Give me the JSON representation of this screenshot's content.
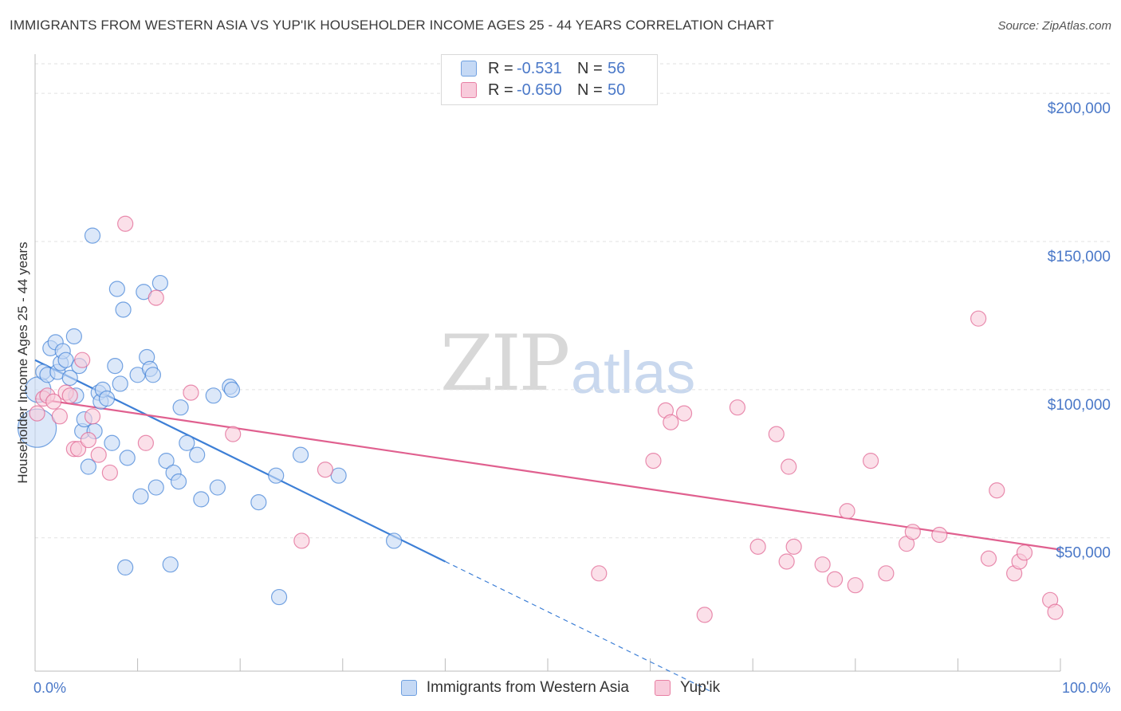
{
  "title": "IMMIGRANTS FROM WESTERN ASIA VS YUP'IK HOUSEHOLDER INCOME AGES 25 - 44 YEARS CORRELATION CHART",
  "source": "Source: ZipAtlas.com",
  "watermark": {
    "zip": "ZIP",
    "atlas": "atlas"
  },
  "legend": {
    "rows": [
      {
        "r_label": "R =",
        "r_value": "-0.531",
        "n_label": "N =",
        "n_value": "56",
        "color": "#6fa0e0",
        "fill": "#c5d9f5"
      },
      {
        "r_label": "R =",
        "r_value": "-0.650",
        "n_label": "N =",
        "n_value": "50",
        "color": "#e87fa3",
        "fill": "#f8cbdb"
      }
    ]
  },
  "bottom_legend": [
    {
      "label": "Immigrants from Western Asia",
      "color": "#6fa0e0",
      "fill": "#c5d9f5"
    },
    {
      "label": "Yup'ik",
      "color": "#e87fa3",
      "fill": "#f8cbdb"
    }
  ],
  "chart_data": {
    "type": "scatter",
    "title": "IMMIGRANTS FROM WESTERN ASIA VS YUP'IK HOUSEHOLDER INCOME AGES 25 - 44 YEARS CORRELATION CHART",
    "xlabel": "",
    "ylabel": "Householder Income Ages 25 - 44 years",
    "xlim": [
      0,
      100
    ],
    "ylim": [
      5000,
      210000
    ],
    "x_tick_labels": [
      "0.0%",
      "100.0%"
    ],
    "y_ticks": [
      50000,
      100000,
      150000,
      200000
    ],
    "y_tick_labels": [
      "$50,000",
      "$100,000",
      "$150,000",
      "$200,000"
    ],
    "grid": true,
    "series": [
      {
        "name": "Immigrants from Western Asia",
        "color": "#3d7fd6",
        "fill": "#c5d9f5",
        "trend": {
          "x0": 0,
          "y0": 110000,
          "x1": 40,
          "y1": 42000,
          "dash_to_x": 66,
          "dash_to_y": -2000
        },
        "points": [
          [
            0.2,
            87000
          ],
          [
            0.3,
            100000
          ],
          [
            0.8,
            106000
          ],
          [
            1.2,
            105000
          ],
          [
            1.5,
            114000
          ],
          [
            2.0,
            116000
          ],
          [
            2.2,
            106000
          ],
          [
            2.5,
            109000
          ],
          [
            2.7,
            113000
          ],
          [
            3.0,
            110000
          ],
          [
            3.4,
            104000
          ],
          [
            3.8,
            118000
          ],
          [
            4.0,
            98000
          ],
          [
            4.3,
            108000
          ],
          [
            4.6,
            86000
          ],
          [
            4.8,
            90000
          ],
          [
            5.2,
            74000
          ],
          [
            5.6,
            152000
          ],
          [
            5.8,
            86000
          ],
          [
            6.2,
            99000
          ],
          [
            6.4,
            96000
          ],
          [
            6.6,
            100000
          ],
          [
            7.0,
            97000
          ],
          [
            7.5,
            82000
          ],
          [
            7.8,
            108000
          ],
          [
            8.0,
            134000
          ],
          [
            8.3,
            102000
          ],
          [
            8.6,
            127000
          ],
          [
            8.8,
            40000
          ],
          [
            9.0,
            77000
          ],
          [
            10.0,
            105000
          ],
          [
            10.3,
            64000
          ],
          [
            10.6,
            133000
          ],
          [
            10.9,
            111000
          ],
          [
            11.2,
            107000
          ],
          [
            11.5,
            105000
          ],
          [
            11.8,
            67000
          ],
          [
            12.2,
            136000
          ],
          [
            12.8,
            76000
          ],
          [
            13.2,
            41000
          ],
          [
            13.5,
            72000
          ],
          [
            14.0,
            69000
          ],
          [
            14.2,
            94000
          ],
          [
            14.8,
            82000
          ],
          [
            15.8,
            78000
          ],
          [
            16.2,
            63000
          ],
          [
            17.4,
            98000
          ],
          [
            17.8,
            67000
          ],
          [
            19.0,
            101000
          ],
          [
            19.2,
            100000
          ],
          [
            21.8,
            62000
          ],
          [
            23.5,
            71000
          ],
          [
            23.8,
            30000
          ],
          [
            25.9,
            78000
          ],
          [
            29.6,
            71000
          ],
          [
            35.0,
            49000
          ]
        ]
      },
      {
        "name": "Yup'ik",
        "color": "#e0608f",
        "fill": "#f8cbdb",
        "trend": {
          "x0": 0,
          "y0": 97000,
          "x1": 100,
          "y1": 46000
        },
        "points": [
          [
            0.2,
            92000
          ],
          [
            0.8,
            97000
          ],
          [
            1.2,
            98000
          ],
          [
            1.8,
            96000
          ],
          [
            2.4,
            91000
          ],
          [
            3.0,
            99000
          ],
          [
            3.4,
            98000
          ],
          [
            3.8,
            80000
          ],
          [
            4.2,
            80000
          ],
          [
            4.6,
            110000
          ],
          [
            5.2,
            83000
          ],
          [
            5.6,
            91000
          ],
          [
            6.2,
            78000
          ],
          [
            7.3,
            72000
          ],
          [
            8.8,
            156000
          ],
          [
            10.8,
            82000
          ],
          [
            11.8,
            131000
          ],
          [
            15.2,
            99000
          ],
          [
            19.3,
            85000
          ],
          [
            26.0,
            49000
          ],
          [
            28.3,
            73000
          ],
          [
            55.0,
            38000
          ],
          [
            60.3,
            76000
          ],
          [
            61.5,
            93000
          ],
          [
            62.0,
            89000
          ],
          [
            63.3,
            92000
          ],
          [
            65.3,
            24000
          ],
          [
            68.5,
            94000
          ],
          [
            70.5,
            47000
          ],
          [
            72.3,
            85000
          ],
          [
            73.3,
            42000
          ],
          [
            73.5,
            74000
          ],
          [
            74.0,
            47000
          ],
          [
            76.8,
            41000
          ],
          [
            78.0,
            36000
          ],
          [
            79.2,
            59000
          ],
          [
            80.0,
            34000
          ],
          [
            81.5,
            76000
          ],
          [
            83.0,
            38000
          ],
          [
            85.0,
            48000
          ],
          [
            85.6,
            52000
          ],
          [
            88.2,
            51000
          ],
          [
            92.0,
            124000
          ],
          [
            93.0,
            43000
          ],
          [
            93.8,
            66000
          ],
          [
            95.5,
            38000
          ],
          [
            96.0,
            42000
          ],
          [
            96.5,
            45000
          ],
          [
            99.0,
            29000
          ],
          [
            99.5,
            25000
          ]
        ]
      }
    ]
  }
}
